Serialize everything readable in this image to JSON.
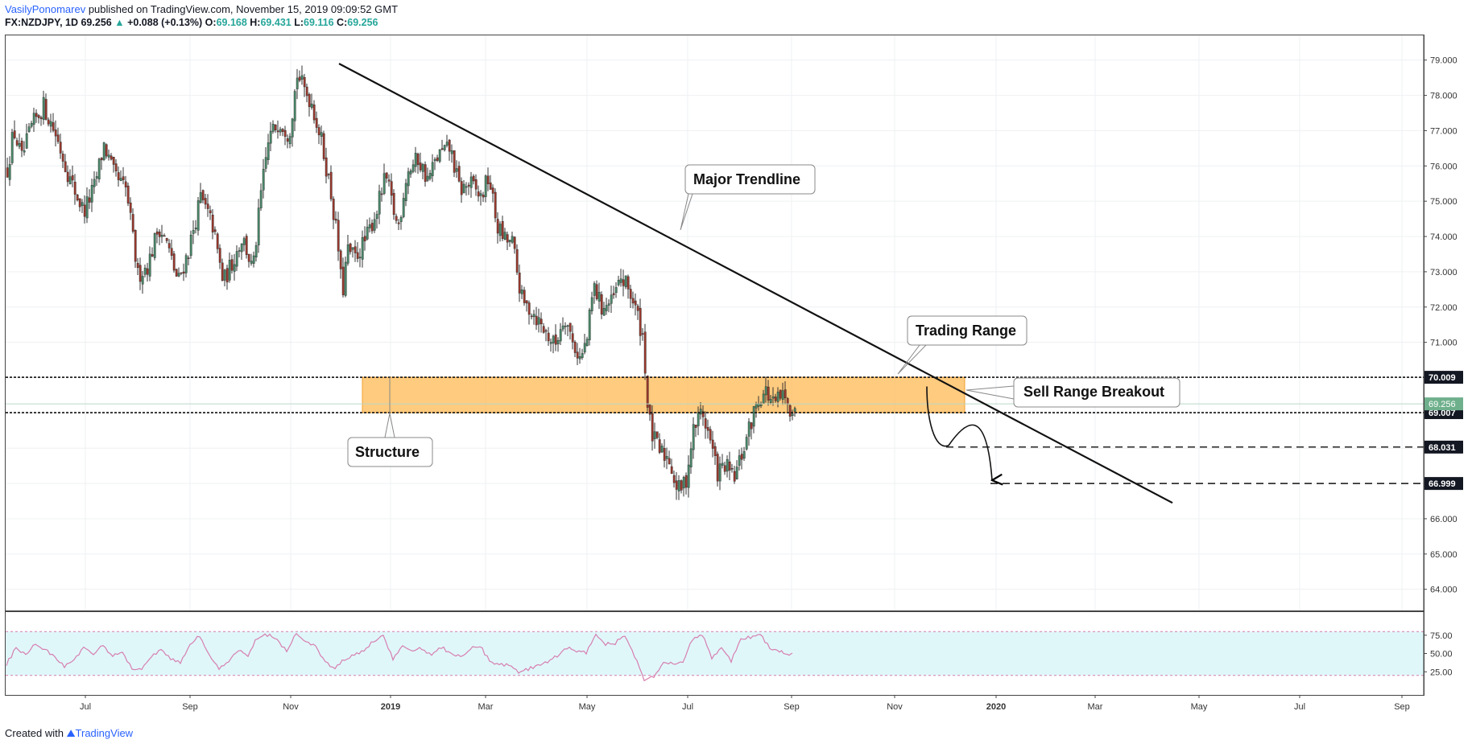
{
  "header": {
    "author": "VasilyPonomarev",
    "published": " published on TradingView.com, November 15, 2019 09:09:52 GMT",
    "symbol": "FX:NZDJPY, 1D",
    "last": "69.256",
    "change_arrow": "▲",
    "change": "+0.088 (+0.13%)",
    "o_label": "O:",
    "o_value": "69.168",
    "h_label": "H:",
    "h_value": "69.431",
    "l_label": "L:",
    "l_value": "69.116",
    "c_label": "C:",
    "c_value": "69.256"
  },
  "footer": {
    "created_with": "Created with",
    "brand": "TradingView"
  },
  "colors": {
    "up": "#4a8a6a",
    "down": "#9c3a2e",
    "zone": "#ffb74d",
    "rsi_band": "#e0f7fa",
    "rsi_line": "#d67fb0",
    "price_badge": "#6fb08c"
  },
  "chart_data": {
    "type": "candlestick",
    "symbol": "FX:NZDJPY",
    "interval": "1D",
    "ylim": [
      63.4,
      79.7
    ],
    "y_ticks": [
      "79.000",
      "78.000",
      "77.000",
      "76.000",
      "75.000",
      "74.000",
      "73.000",
      "72.000",
      "71.000",
      "70.000",
      "69.000",
      "68.000",
      "67.000",
      "66.000",
      "65.000",
      "64.000"
    ],
    "x_ticks": [
      {
        "label": "Jul",
        "bold": false
      },
      {
        "label": "Sep",
        "bold": false
      },
      {
        "label": "Nov",
        "bold": false
      },
      {
        "label": "2019",
        "bold": true
      },
      {
        "label": "Mar",
        "bold": false
      },
      {
        "label": "May",
        "bold": false
      },
      {
        "label": "Jul",
        "bold": false
      },
      {
        "label": "Sep",
        "bold": false
      },
      {
        "label": "Nov",
        "bold": false
      },
      {
        "label": "2020",
        "bold": true
      },
      {
        "label": "Mar",
        "bold": false
      },
      {
        "label": "May",
        "bold": false
      },
      {
        "label": "Jul",
        "bold": false
      },
      {
        "label": "Sep",
        "bold": false
      }
    ],
    "price_path": [
      [
        0,
        75.9
      ],
      [
        8,
        77.0
      ],
      [
        18,
        76.2
      ],
      [
        30,
        77.1
      ],
      [
        45,
        77.7
      ],
      [
        60,
        76.9
      ],
      [
        78,
        75.6
      ],
      [
        95,
        74.7
      ],
      [
        108,
        75.4
      ],
      [
        120,
        76.6
      ],
      [
        133,
        75.7
      ],
      [
        148,
        75.3
      ],
      [
        162,
        72.9
      ],
      [
        175,
        73.2
      ],
      [
        188,
        74.3
      ],
      [
        198,
        73.8
      ],
      [
        212,
        72.7
      ],
      [
        225,
        73.6
      ],
      [
        240,
        75.1
      ],
      [
        255,
        74.3
      ],
      [
        268,
        72.7
      ],
      [
        280,
        73.3
      ],
      [
        292,
        74.0
      ],
      [
        305,
        73.0
      ],
      [
        315,
        75.2
      ],
      [
        325,
        76.8
      ],
      [
        338,
        77.3
      ],
      [
        350,
        76.9
      ],
      [
        360,
        78.6
      ],
      [
        368,
        78.2
      ],
      [
        378,
        77.8
      ],
      [
        390,
        76.7
      ],
      [
        400,
        75.5
      ],
      [
        410,
        73.9
      ],
      [
        416,
        72.3
      ],
      [
        422,
        73.6
      ],
      [
        432,
        73.4
      ],
      [
        445,
        73.9
      ],
      [
        458,
        74.7
      ],
      [
        470,
        75.7
      ],
      [
        485,
        74.2
      ],
      [
        496,
        75.8
      ],
      [
        510,
        76.2
      ],
      [
        522,
        75.6
      ],
      [
        535,
        76.3
      ],
      [
        550,
        76.5
      ],
      [
        562,
        75.3
      ],
      [
        575,
        75.5
      ],
      [
        588,
        75.1
      ],
      [
        598,
        75.7
      ],
      [
        608,
        74.3
      ],
      [
        618,
        73.9
      ],
      [
        628,
        73.8
      ],
      [
        632,
        73.1
      ],
      [
        640,
        72.1
      ],
      [
        652,
        71.9
      ],
      [
        665,
        71.4
      ],
      [
        680,
        70.9
      ],
      [
        692,
        71.8
      ],
      [
        702,
        71.0
      ],
      [
        712,
        70.5
      ],
      [
        720,
        71.1
      ],
      [
        728,
        72.6
      ],
      [
        738,
        72.0
      ],
      [
        750,
        72.1
      ],
      [
        762,
        72.8
      ],
      [
        772,
        72.5
      ],
      [
        782,
        71.8
      ],
      [
        790,
        71.1
      ],
      [
        795,
        69.2
      ],
      [
        800,
        68.4
      ],
      [
        810,
        67.9
      ],
      [
        822,
        67.7
      ],
      [
        832,
        66.8
      ],
      [
        842,
        67.0
      ],
      [
        852,
        68.5
      ],
      [
        862,
        69.1
      ],
      [
        872,
        68.3
      ],
      [
        882,
        67.3
      ],
      [
        892,
        67.5
      ],
      [
        902,
        67.1
      ],
      [
        912,
        67.8
      ],
      [
        922,
        68.6
      ],
      [
        932,
        69.4
      ],
      [
        942,
        69.6
      ],
      [
        952,
        69.2
      ],
      [
        962,
        69.5
      ],
      [
        970,
        69.1
      ],
      [
        978,
        69.26
      ]
    ],
    "rsi": {
      "levels": [
        "75.00",
        "50.00",
        "25.00"
      ],
      "upper": 80,
      "lower": 20,
      "path": [
        [
          0,
          35
        ],
        [
          12,
          58
        ],
        [
          24,
          48
        ],
        [
          36,
          62
        ],
        [
          48,
          55
        ],
        [
          60,
          45
        ],
        [
          72,
          32
        ],
        [
          84,
          42
        ],
        [
          96,
          58
        ],
        [
          108,
          50
        ],
        [
          120,
          60
        ],
        [
          132,
          46
        ],
        [
          144,
          52
        ],
        [
          156,
          28
        ],
        [
          168,
          30
        ],
        [
          180,
          45
        ],
        [
          192,
          55
        ],
        [
          204,
          42
        ],
        [
          216,
          38
        ],
        [
          228,
          62
        ],
        [
          240,
          74
        ],
        [
          252,
          48
        ],
        [
          264,
          28
        ],
        [
          276,
          40
        ],
        [
          288,
          55
        ],
        [
          300,
          48
        ],
        [
          312,
          72
        ],
        [
          324,
          75
        ],
        [
          336,
          70
        ],
        [
          348,
          52
        ],
        [
          360,
          78
        ],
        [
          372,
          66
        ],
        [
          384,
          60
        ],
        [
          396,
          38
        ],
        [
          408,
          30
        ],
        [
          420,
          42
        ],
        [
          432,
          48
        ],
        [
          444,
          55
        ],
        [
          456,
          66
        ],
        [
          468,
          76
        ],
        [
          480,
          42
        ],
        [
          492,
          60
        ],
        [
          504,
          54
        ],
        [
          516,
          56
        ],
        [
          528,
          48
        ],
        [
          540,
          58
        ],
        [
          552,
          50
        ],
        [
          564,
          45
        ],
        [
          576,
          56
        ],
        [
          588,
          60
        ],
        [
          600,
          40
        ],
        [
          612,
          34
        ],
        [
          624,
          34
        ],
        [
          636,
          25
        ],
        [
          648,
          28
        ],
        [
          660,
          34
        ],
        [
          672,
          38
        ],
        [
          684,
          46
        ],
        [
          696,
          58
        ],
        [
          708,
          54
        ],
        [
          720,
          50
        ],
        [
          732,
          76
        ],
        [
          744,
          62
        ],
        [
          756,
          64
        ],
        [
          768,
          75
        ],
        [
          780,
          46
        ],
        [
          792,
          14
        ],
        [
          804,
          18
        ],
        [
          816,
          38
        ],
        [
          828,
          35
        ],
        [
          840,
          38
        ],
        [
          852,
          70
        ],
        [
          864,
          76
        ],
        [
          876,
          44
        ],
        [
          888,
          58
        ],
        [
          900,
          40
        ],
        [
          912,
          70
        ],
        [
          924,
          72
        ],
        [
          936,
          78
        ],
        [
          948,
          56
        ],
        [
          960,
          54
        ],
        [
          970,
          48
        ],
        [
          978,
          50
        ]
      ]
    },
    "horizontal_levels": [
      {
        "price": 70.009,
        "label": "70.009",
        "style": "dotted"
      },
      {
        "price": 69.007,
        "label": "69.007",
        "style": "dotted"
      },
      {
        "price": 68.031,
        "label": "68.031",
        "style": "dashed"
      },
      {
        "price": 66.999,
        "label": "66.999",
        "style": "dashed"
      }
    ],
    "current_price": {
      "label": "69.256",
      "price": 69.256
    },
    "annotations": {
      "trendline": "Major Trendline",
      "structure": "Structure",
      "trading_range": "Trading Range",
      "breakout": "Sell Range Breakout"
    }
  }
}
